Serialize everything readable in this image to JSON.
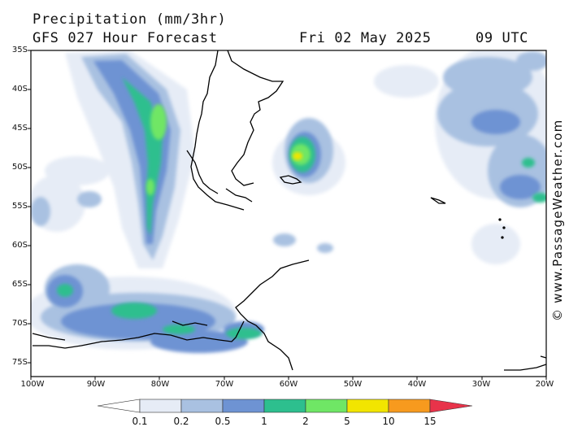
{
  "header": {
    "title": "Precipitation (mm/3hr)",
    "model": "GFS 027 Hour Forecast",
    "date": "Fri 02 May 2025",
    "time": "09 UTC"
  },
  "credit": "© www.PassageWeather.com",
  "map": {
    "lat_labels": [
      "35S",
      "40S",
      "45S",
      "50S",
      "55S",
      "60S",
      "65S",
      "70S",
      "75S"
    ],
    "lon_labels": [
      "100W",
      "90W",
      "80W",
      "70W",
      "60W",
      "50W",
      "40W",
      "30W",
      "20W"
    ]
  },
  "colorbar": {
    "labels": [
      "0.1",
      "0.2",
      "0.5",
      "1",
      "2",
      "5",
      "10",
      "15"
    ],
    "colors": [
      "#ffffff",
      "#e6ecf6",
      "#a9c1e1",
      "#6e93d3",
      "#2dbf8e",
      "#6fe665",
      "#f2e500",
      "#f79a1e",
      "#e8334a"
    ]
  }
}
